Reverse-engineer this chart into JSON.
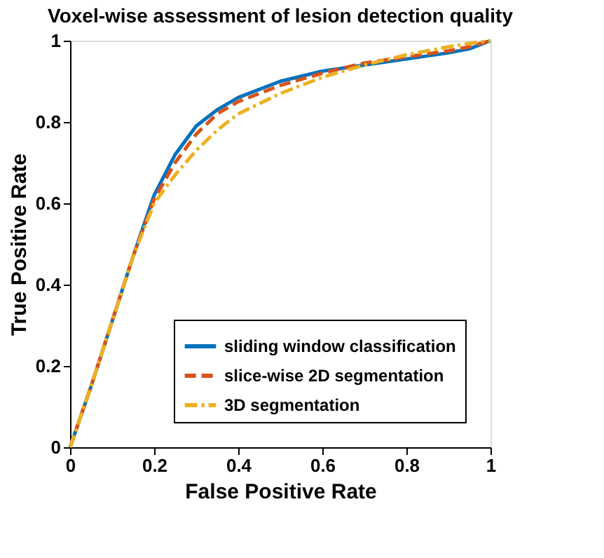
{
  "chart_data": {
    "type": "line",
    "title": "Voxel-wise assessment of lesion detection quality",
    "xlabel": "False Positive Rate",
    "ylabel": "True Positive Rate",
    "x": [
      0,
      0.05,
      0.1,
      0.15,
      0.2,
      0.25,
      0.3,
      0.35,
      0.4,
      0.5,
      0.6,
      0.7,
      0.8,
      0.9,
      0.95,
      1
    ],
    "series": [
      {
        "name": "sliding window classification",
        "color": "#0072bd",
        "line_style": "solid",
        "values": [
          0,
          0.15,
          0.31,
          0.47,
          0.62,
          0.72,
          0.79,
          0.83,
          0.86,
          0.9,
          0.925,
          0.94,
          0.955,
          0.97,
          0.98,
          1
        ]
      },
      {
        "name": "slice-wise 2D segmentation",
        "color": "#d95319",
        "line_style": "dashed",
        "values": [
          0,
          0.15,
          0.31,
          0.47,
          0.61,
          0.7,
          0.77,
          0.82,
          0.85,
          0.89,
          0.92,
          0.945,
          0.96,
          0.975,
          0.985,
          1
        ]
      },
      {
        "name": "3D segmentation",
        "color": "#edb120",
        "line_style": "dashdot",
        "values": [
          0,
          0.15,
          0.31,
          0.47,
          0.6,
          0.67,
          0.73,
          0.78,
          0.82,
          0.87,
          0.91,
          0.94,
          0.965,
          0.985,
          0.993,
          1
        ]
      }
    ],
    "xlim": [
      0,
      1
    ],
    "ylim": [
      0,
      1
    ],
    "xticks": [
      0,
      0.2,
      0.4,
      0.6,
      0.8,
      1
    ],
    "yticks": [
      0,
      0.2,
      0.4,
      0.6,
      0.8,
      1
    ],
    "grid": false,
    "legend": "bottom right",
    "marker": "none"
  }
}
